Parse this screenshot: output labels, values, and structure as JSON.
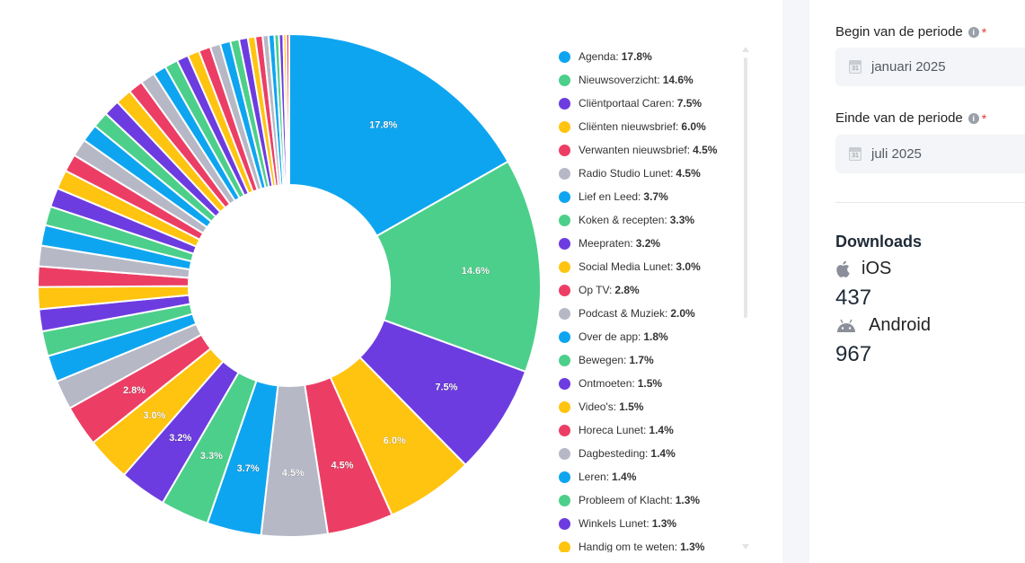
{
  "chart_data": {
    "type": "pie",
    "donut": true,
    "series": [
      {
        "label": "Agenda",
        "value": 17.8,
        "color": "#0ea5f0"
      },
      {
        "label": "Nieuwsoverzicht",
        "value": 14.6,
        "color": "#4ccf8a"
      },
      {
        "label": "Cliëntportaal Caren",
        "value": 7.5,
        "color": "#6c3ce0"
      },
      {
        "label": "Cliënten nieuwsbrief",
        "value": 6.0,
        "color": "#ffc410"
      },
      {
        "label": "Verwanten nieuwsbrief",
        "value": 4.5,
        "color": "#ec3e65"
      },
      {
        "label": "Radio Studio Lunet",
        "value": 4.5,
        "color": "#b7b8c6"
      },
      {
        "label": "Lief en Leed",
        "value": 3.7,
        "color": "#0ea5f0"
      },
      {
        "label": "Koken & recepten",
        "value": 3.3,
        "color": "#4ccf8a"
      },
      {
        "label": "Meepraten",
        "value": 3.2,
        "color": "#6c3ce0"
      },
      {
        "label": "Social Media Lunet",
        "value": 3.0,
        "color": "#ffc410"
      },
      {
        "label": "Op TV",
        "value": 2.8,
        "color": "#ec3e65"
      },
      {
        "label": "Podcast & Muziek",
        "value": 2.0,
        "color": "#b7b8c6"
      },
      {
        "label": "Over de app",
        "value": 1.8,
        "color": "#0ea5f0"
      },
      {
        "label": "Bewegen",
        "value": 1.7,
        "color": "#4ccf8a"
      },
      {
        "label": "Ontmoeten",
        "value": 1.5,
        "color": "#6c3ce0"
      },
      {
        "label": "Video's",
        "value": 1.5,
        "color": "#ffc410"
      },
      {
        "label": "Horeca Lunet",
        "value": 1.4,
        "color": "#ec3e65"
      },
      {
        "label": "Dagbesteding",
        "value": 1.4,
        "color": "#b7b8c6"
      },
      {
        "label": "Leren",
        "value": 1.4,
        "color": "#0ea5f0"
      },
      {
        "label": "Probleem of Klacht",
        "value": 1.3,
        "color": "#4ccf8a"
      },
      {
        "label": "Winkels Lunet",
        "value": 1.3,
        "color": "#6c3ce0"
      },
      {
        "label": "Handig om te weten",
        "value": 1.3,
        "color": "#ffc410"
      }
    ],
    "unlisted_small_slices": [
      1.2,
      1.2,
      1.2,
      1.1,
      1.1,
      1.1,
      1.0,
      1.0,
      0.9,
      0.9,
      0.8,
      0.8,
      0.8,
      0.7,
      0.7,
      0.6,
      0.6,
      0.5,
      0.5,
      0.4,
      0.4,
      0.3,
      0.3,
      0.2,
      0.2
    ],
    "slice_labels_shown": [
      "17.8%",
      "14.6%",
      "7.5%",
      "6.0%",
      "4.5%",
      "4.5%",
      "3.7%",
      "3.3%",
      "3.2%",
      "3.0%",
      "2.8%"
    ],
    "legend_placement": "right",
    "color_cycle": [
      "#0ea5f0",
      "#4ccf8a",
      "#6c3ce0",
      "#ffc410",
      "#ec3e65",
      "#b7b8c6"
    ]
  },
  "filters": {
    "begin_label": "Begin van de periode",
    "begin_value": "januari 2025",
    "end_label": "Einde van de periode",
    "end_value": "juli 2025",
    "required_mark": "*",
    "info_mark": "i",
    "calendar_day": "31"
  },
  "downloads": {
    "title": "Downloads",
    "ios_label": "iOS",
    "ios_count": "437",
    "android_label": "Android",
    "android_count": "967",
    "ios_icon": "apple-icon",
    "android_icon": "android-icon"
  }
}
